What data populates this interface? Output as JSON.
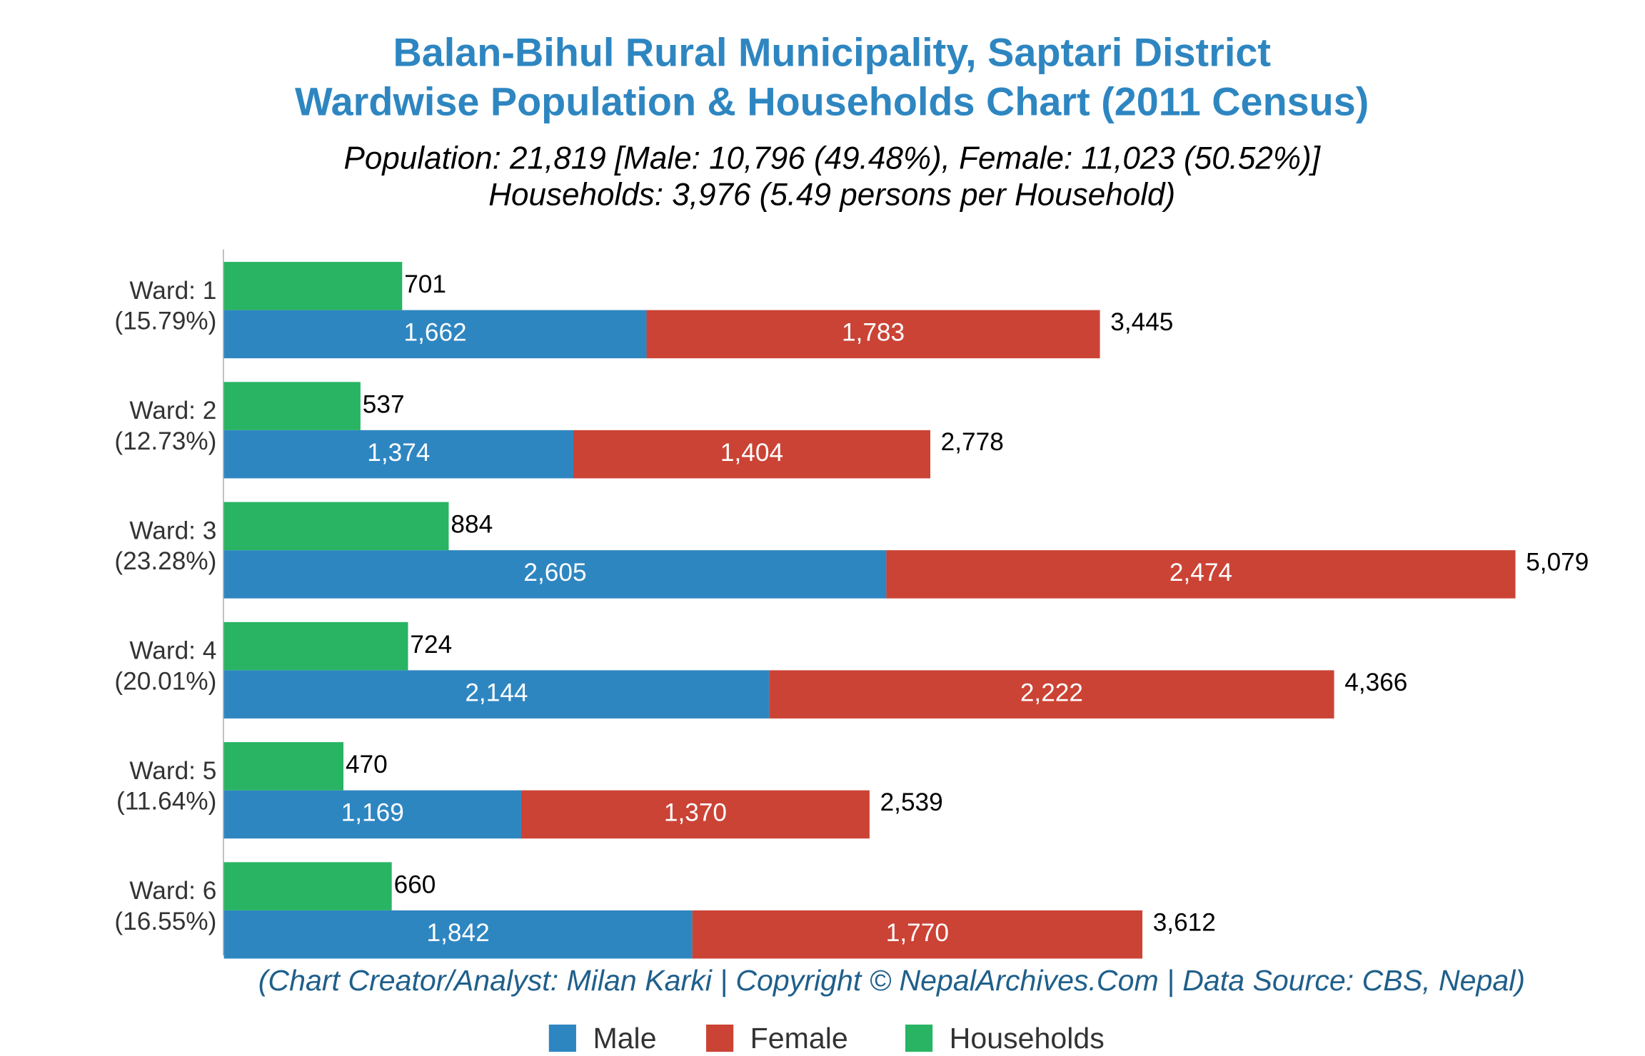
{
  "chart_data": {
    "type": "bar",
    "orientation": "horizontal",
    "stacked": true,
    "title": [
      "Balan-Bihul Rural Municipality, Saptari District",
      "Wardwise Population & Households Chart (2011 Census)"
    ],
    "subtitle": [
      "Population: 21,819 [Male: 10,796 (49.48%), Female: 11,023 (50.52%)]",
      "Households: 3,976 (5.49 persons per Household)"
    ],
    "note": "(Chart Creator/Analyst: Milan Karki | Copyright © NepalArchives.Com | Data Source: CBS, Nepal)",
    "categories": [
      "Ward: 1",
      "Ward: 2",
      "Ward: 3",
      "Ward: 4",
      "Ward: 5",
      "Ward: 6"
    ],
    "category_shares": [
      "(15.79%)",
      "(12.73%)",
      "(23.28%)",
      "(20.01%)",
      "(11.64%)",
      "(16.55%)"
    ],
    "series": [
      {
        "name": "Male",
        "color": "#2e86c1",
        "stack": "population",
        "values": [
          1662,
          1374,
          2605,
          2144,
          1169,
          1842
        ],
        "value_labels": [
          "1,662",
          "1,374",
          "2,605",
          "2,144",
          "1,169",
          "1,842"
        ]
      },
      {
        "name": "Female",
        "color": "#cb4335",
        "stack": "population",
        "values": [
          1783,
          1404,
          2474,
          2222,
          1370,
          1770
        ],
        "value_labels": [
          "1,783",
          "1,404",
          "2,474",
          "2,222",
          "1,370",
          "1,770"
        ]
      },
      {
        "name": "Households",
        "color": "#28b463",
        "stack": "households",
        "values": [
          701,
          537,
          884,
          724,
          470,
          660
        ]
      }
    ],
    "totals": {
      "values": [
        3445,
        2778,
        5079,
        4366,
        2539,
        3612
      ],
      "value_labels": [
        "3,445",
        "2,778",
        "5,079",
        "4,366",
        "2,539",
        "3,612"
      ]
    },
    "legend": "bottom"
  }
}
